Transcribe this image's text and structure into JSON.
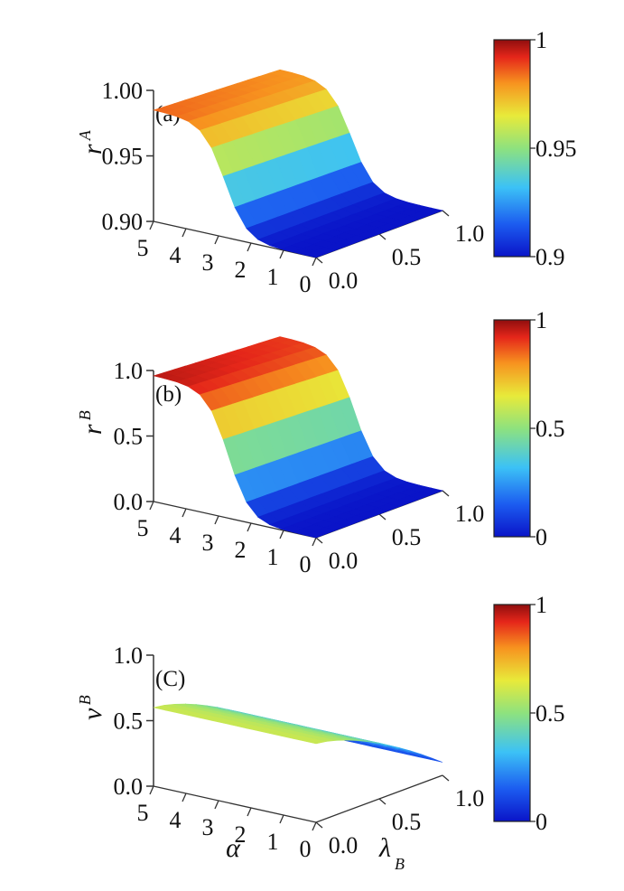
{
  "chart_data": [
    {
      "type": "surface3d",
      "panel_label": "(a)",
      "zlabel": "r",
      "zlabel_sup": "A",
      "x_axis": {
        "label": "α",
        "ticks": [
          5,
          4,
          3,
          2,
          1,
          0
        ],
        "range": [
          0,
          5
        ]
      },
      "y_axis": {
        "label": "λ",
        "label_sub": "B",
        "ticks": [
          "0.0",
          "0.5",
          "1.0"
        ],
        "range": [
          0,
          1
        ]
      },
      "z_axis": {
        "ticks": [
          "0.90",
          "0.95",
          "1.00"
        ],
        "range": [
          0.9,
          1.0
        ]
      },
      "colorbar": {
        "ticks": [
          "0.9",
          "0.95",
          "1"
        ],
        "range": [
          0.9,
          1.0
        ]
      },
      "surface": {
        "low": 0.9,
        "high": 0.985,
        "high_at_lambda1": 0.98,
        "mid_alpha": 2.8,
        "steep": 3.0
      }
    },
    {
      "type": "surface3d",
      "panel_label": "(b)",
      "zlabel": "r",
      "zlabel_sup": "B",
      "x_axis": {
        "label": "α",
        "ticks": [
          5,
          4,
          3,
          2,
          1,
          0
        ],
        "range": [
          0,
          5
        ]
      },
      "y_axis": {
        "label": "λ",
        "label_sub": "B",
        "ticks": [
          "0.0",
          "0.5",
          "1.0"
        ],
        "range": [
          0,
          1
        ]
      },
      "z_axis": {
        "ticks": [
          "0.0",
          "0.5",
          "1.0"
        ],
        "range": [
          0,
          1
        ]
      },
      "colorbar": {
        "ticks": [
          "0",
          "0.5",
          "1"
        ],
        "range": [
          0,
          1
        ]
      },
      "surface": {
        "low": 0.0,
        "high": 0.96,
        "high_at_lambda1": 0.9,
        "mid_alpha": 2.7,
        "steep": 3.0
      }
    },
    {
      "type": "surface3d",
      "panel_label": "(C)",
      "zlabel": "v",
      "zlabel_sup": "B",
      "x_axis": {
        "label": "α",
        "ticks": [
          5,
          4,
          3,
          2,
          1,
          0
        ],
        "range": [
          0,
          5
        ]
      },
      "y_axis": {
        "label": "λ",
        "label_sub": "B",
        "ticks": [
          "0.0",
          "0.5",
          "1.0"
        ],
        "range": [
          0,
          1
        ]
      },
      "z_axis": {
        "ticks": [
          "0.0",
          "0.5",
          "1.0"
        ],
        "range": [
          0,
          1
        ]
      },
      "colorbar": {
        "ticks": [
          "0",
          "0.5",
          "1"
        ],
        "range": [
          0,
          1
        ]
      },
      "surface": {
        "at_lambda0": 0.6,
        "at_lambda1": 0.1
      }
    }
  ],
  "x_axis_title": "α",
  "y_axis_title": "λ",
  "y_axis_title_sub": "B"
}
